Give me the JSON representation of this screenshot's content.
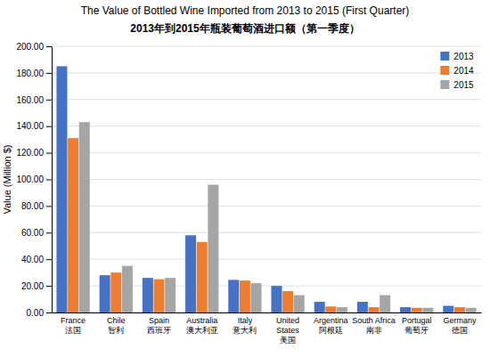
{
  "chart_data": {
    "type": "bar",
    "title": "The Value of Bottled Wine Imported from 2013 to 2015 (First Quarter)",
    "subtitle": "2013年到2015年瓶装葡萄酒进口额（第一季度）",
    "y_label": "Value (Million $)",
    "categories": [
      "France\n法国",
      "Chile\n智利",
      "Spain\n西班牙",
      "Australia\n澳大利亚",
      "Italy\n意大利",
      "United\nStates\n美国",
      "Argentina\n阿根廷",
      "South Africa\n南非",
      "Portugal\n葡萄牙",
      "Germany\n德国"
    ],
    "series": [
      {
        "name": "2013",
        "color": "#4472C4",
        "values": [
          185,
          28,
          26,
          58,
          24.5,
          20,
          8,
          8,
          4,
          5
        ]
      },
      {
        "name": "2014",
        "color": "#ED7D31",
        "values": [
          131,
          30,
          25,
          53,
          24,
          16,
          4.5,
          4,
          3.5,
          4
        ]
      },
      {
        "name": "2015",
        "color": "#A5A5A5",
        "values": [
          143,
          35,
          26,
          96,
          22,
          13,
          4,
          13,
          3.5,
          3.5
        ]
      }
    ],
    "ylim": [
      0,
      200
    ],
    "yticks": [
      {
        "value": 0,
        "label": "0.00"
      },
      {
        "value": 20,
        "label": "20.00"
      },
      {
        "value": 40,
        "label": "40.00"
      },
      {
        "value": 60,
        "label": "60.00"
      },
      {
        "value": 80,
        "label": "80.00"
      },
      {
        "value": 100,
        "label": "100.00"
      },
      {
        "value": 120,
        "label": "120.00"
      },
      {
        "value": 140,
        "label": "140.00"
      },
      {
        "value": 160,
        "label": "160.00"
      },
      {
        "value": 180,
        "label": "180.00"
      },
      {
        "value": 200,
        "label": "200.00"
      }
    ],
    "grid": true,
    "legend": "top-right"
  }
}
